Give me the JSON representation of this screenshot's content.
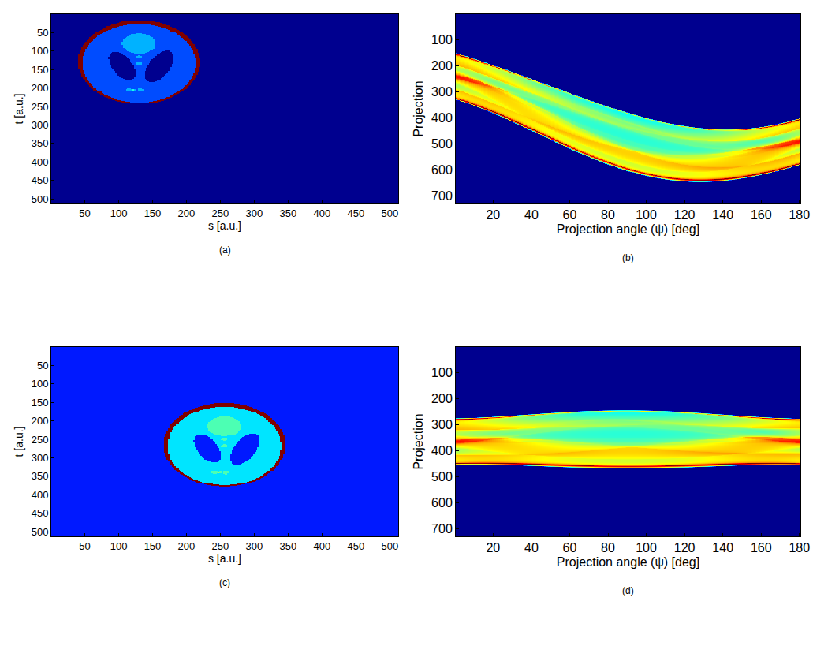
{
  "phantom": {
    "ellipses": [
      {
        "dx": 0,
        "dy": 0,
        "a": 90,
        "b": 113,
        "angle": 0,
        "value": 1.0
      },
      {
        "dx": 0,
        "dy": -3,
        "a": 84,
        "b": 106,
        "angle": 0,
        "value": -0.8
      },
      {
        "dx": -25,
        "dy": -10,
        "a": 40,
        "b": 16,
        "angle": 108,
        "value": -0.2
      },
      {
        "dx": 30,
        "dy": -12,
        "a": 45,
        "b": 17,
        "angle": 72,
        "value": -0.2
      },
      {
        "dx": 0,
        "dy": 50,
        "a": 25,
        "b": 27,
        "angle": 0,
        "value": 0.1
      },
      {
        "dx": 0,
        "dy": 15,
        "a": 5,
        "b": 4,
        "angle": 0,
        "value": 0.1
      },
      {
        "dx": 0,
        "dy": -3,
        "a": 5,
        "b": 5,
        "angle": 0,
        "value": 0.1
      },
      {
        "dx": -14,
        "dy": -75,
        "a": 6,
        "b": 4,
        "angle": 0,
        "value": 0.1
      },
      {
        "dx": -6,
        "dy": -75,
        "a": 3,
        "b": 3,
        "angle": 0,
        "value": 0.1
      },
      {
        "dx": 2,
        "dy": -75,
        "a": 4,
        "b": 6,
        "angle": 0,
        "value": 0.1
      }
    ]
  },
  "chart_data": [
    {
      "type": "image",
      "label": "(a)",
      "x_label": "s [a.u.]",
      "y_label": "t [a.u.]",
      "xlim": [
        0.5,
        512.5
      ],
      "ylim": [
        512.5,
        0.5
      ],
      "xticks": [
        50,
        100,
        150,
        200,
        250,
        300,
        350,
        400,
        450,
        500
      ],
      "yticks": [
        50,
        100,
        150,
        200,
        250,
        300,
        350,
        400,
        450,
        500
      ],
      "zlim": [
        0,
        1
      ],
      "background": 0,
      "phantom_center": [
        130,
        130
      ]
    },
    {
      "type": "sinogram",
      "label": "(b)",
      "x_label": "Projection angle (ψ) [deg]",
      "y_label": "Projection",
      "xlim": [
        0.5,
        180.5
      ],
      "ylim": [
        729.5,
        0.5
      ],
      "xticks": [
        20,
        40,
        60,
        80,
        100,
        120,
        140,
        160,
        180
      ],
      "yticks": [
        100,
        200,
        300,
        400,
        500,
        600,
        700
      ],
      "zlim": [
        0,
        75
      ],
      "phantom_center": [
        130,
        130
      ],
      "image_center": [
        256.5,
        256.5
      ],
      "projection_center": 365
    },
    {
      "type": "image",
      "label": "(c)",
      "x_label": "s [a.u.]",
      "y_label": "t [a.u.]",
      "xlim": [
        0.5,
        512.5
      ],
      "ylim": [
        512.5,
        0.5
      ],
      "xticks": [
        50,
        100,
        150,
        200,
        250,
        300,
        350,
        400,
        450,
        500
      ],
      "yticks": [
        50,
        100,
        150,
        200,
        250,
        300,
        350,
        400,
        450,
        500
      ],
      "zlim": [
        0,
        1
      ],
      "background": 0.15,
      "phantom_center": [
        256,
        265
      ]
    },
    {
      "type": "sinogram",
      "label": "(d)",
      "x_label": "Projection angle (ψ) [deg]",
      "y_label": "Projection",
      "xlim": [
        0.5,
        180.5
      ],
      "ylim": [
        729.5,
        0.5
      ],
      "xticks": [
        20,
        40,
        60,
        80,
        100,
        120,
        140,
        160,
        180
      ],
      "yticks": [
        100,
        200,
        300,
        400,
        500,
        600,
        700
      ],
      "zlim": [
        0,
        75
      ],
      "phantom_center": [
        256,
        265
      ],
      "image_center": [
        256.5,
        256.5
      ],
      "projection_center": 365
    }
  ]
}
